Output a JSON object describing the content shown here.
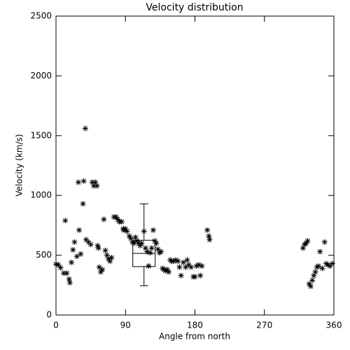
{
  "chart_data": {
    "type": "scatter",
    "title": "Velocity distribution",
    "x_label": "Angle from north",
    "y_label": "Velocity (km/s)",
    "x": [
      0,
      3,
      6,
      10,
      12,
      14,
      17,
      18,
      20,
      22,
      24,
      27,
      29,
      30,
      32,
      35,
      36,
      38,
      39,
      42,
      45,
      47,
      49,
      51,
      53,
      54,
      55,
      56,
      58,
      60,
      62,
      64,
      66,
      68,
      70,
      72,
      75,
      78,
      80,
      82,
      85,
      87,
      88,
      90,
      92,
      95,
      97,
      99,
      101,
      103,
      105,
      107,
      109,
      111,
      114,
      116,
      118,
      120,
      122,
      124,
      126,
      128,
      130,
      132,
      134,
      136,
      138,
      140,
      142,
      144,
      146,
      148,
      150,
      152,
      155,
      158,
      160,
      162,
      165,
      168,
      170,
      172,
      175,
      178,
      180,
      182,
      185,
      187,
      189,
      196,
      198,
      199,
      320,
      322,
      324,
      326,
      328,
      330,
      332,
      334,
      336,
      338,
      340,
      342,
      345,
      348,
      350,
      352,
      355,
      358
    ],
    "values": [
      425,
      420,
      395,
      350,
      790,
      350,
      300,
      270,
      440,
      545,
      610,
      490,
      1110,
      710,
      510,
      930,
      1120,
      1560,
      630,
      610,
      590,
      1110,
      1080,
      1110,
      1080,
      580,
      560,
      400,
      360,
      380,
      800,
      540,
      500,
      470,
      450,
      480,
      820,
      820,
      800,
      780,
      780,
      720,
      710,
      720,
      700,
      660,
      640,
      610,
      600,
      650,
      620,
      600,
      580,
      600,
      700,
      560,
      530,
      410,
      520,
      560,
      710,
      620,
      600,
      550,
      520,
      530,
      390,
      380,
      370,
      380,
      360,
      460,
      450,
      450,
      460,
      450,
      400,
      330,
      440,
      400,
      460,
      420,
      400,
      320,
      320,
      410,
      420,
      330,
      410,
      710,
      660,
      630,
      560,
      590,
      600,
      620,
      260,
      240,
      290,
      330,
      360,
      400,
      410,
      530,
      390,
      610,
      430,
      420,
      410,
      430
    ],
    "box": {
      "x": 114,
      "whisker_low": 245,
      "q1": 405,
      "median": 515,
      "q3": 625,
      "whisker_high": 930
    },
    "color": "#000000",
    "xlim": [
      0,
      360
    ],
    "xticks": [
      0,
      90,
      180,
      270,
      360
    ],
    "ylim": [
      0,
      2500
    ],
    "yticks": [
      0,
      500,
      1000,
      1500,
      2000,
      2500
    ]
  }
}
